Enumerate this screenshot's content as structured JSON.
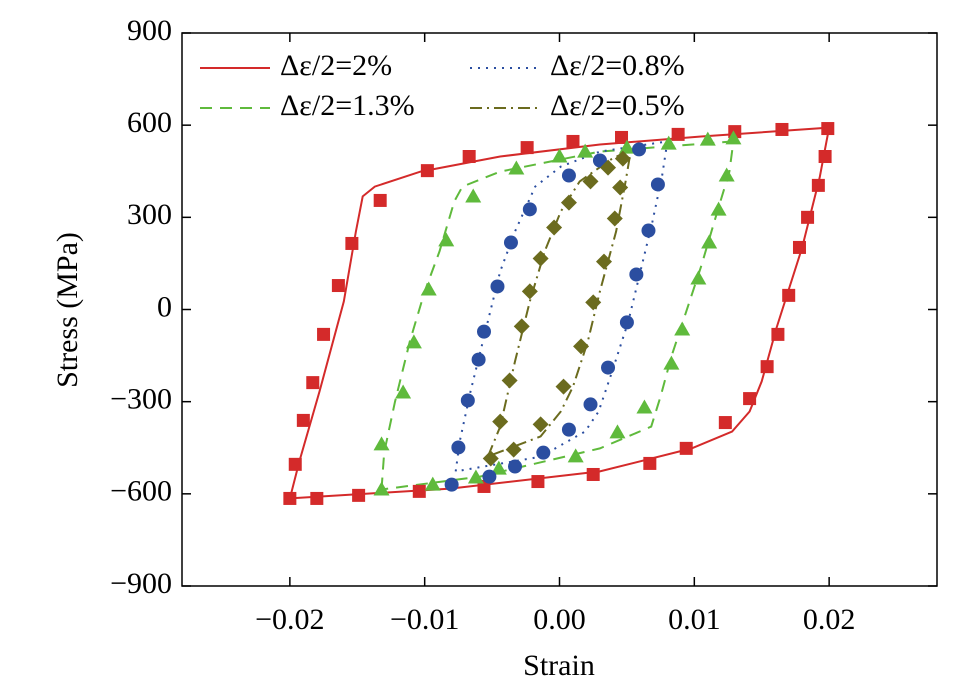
{
  "chart_data": {
    "type": "scatter-line",
    "x_label": "Strain",
    "y_label": "Stress (MPa)",
    "xlim": [
      -0.028,
      0.028
    ],
    "ylim": [
      -900,
      900
    ],
    "xticks": [
      {
        "value": -0.02,
        "label": "−0.02"
      },
      {
        "value": -0.01,
        "label": "−0.01"
      },
      {
        "value": 0,
        "label": "0.00"
      },
      0.01,
      0.02
    ],
    "yticks": [
      {
        "value": -900,
        "label": "−900"
      },
      {
        "value": -600,
        "label": "−600"
      },
      {
        "value": -300,
        "label": "−300"
      },
      0,
      300,
      600,
      900
    ],
    "legend": "upper left",
    "series": [
      {
        "name": "Δε/2=2%",
        "color": "#d42a2a",
        "dash": "solid",
        "marker": "square",
        "line_x": [
          -0.02,
          -0.0193,
          -0.0178,
          -0.016,
          -0.0151,
          -0.0146,
          -0.0137,
          -0.0103,
          -0.0044,
          0.003,
          0.0105,
          0.02,
          0.0193,
          0.018,
          0.0161,
          0.015,
          0.0141,
          0.0128,
          0.0098,
          0.003,
          -0.0081,
          -0.02
        ],
        "line_y": [
          -615,
          -495,
          -267,
          26,
          254,
          368,
          400,
          449,
          498,
          537,
          563,
          592,
          430,
          202,
          -59,
          -234,
          -332,
          -397,
          -452,
          -527,
          -583,
          -615
        ],
        "marker_x": [
          -0.02,
          -0.0196,
          -0.019,
          -0.0183,
          -0.0175,
          -0.0164,
          -0.0154,
          -0.0133,
          -0.0098,
          -0.0067,
          -0.0024,
          0.001,
          0.0046,
          0.0088,
          0.013,
          0.0165,
          0.0199,
          0.0197,
          0.0192,
          0.0184,
          0.0178,
          0.017,
          0.0162,
          0.0154,
          0.0141,
          0.0123,
          0.0094,
          0.0067,
          0.0025,
          -0.0016,
          -0.0056,
          -0.0104,
          -0.0149,
          -0.018
        ],
        "marker_y": [
          -615,
          -504,
          -361,
          -238,
          -81,
          78,
          215,
          355,
          452,
          498,
          527,
          547,
          560,
          570,
          579,
          586,
          589,
          498,
          404,
          300,
          202,
          46,
          -81,
          -186,
          -290,
          -368,
          -452,
          -501,
          -537,
          -560,
          -576,
          -592,
          -605,
          -615
        ]
      },
      {
        "name": "Δε/2=1.3%",
        "color": "#5fba3c",
        "dash": "dashed",
        "marker": "triangle",
        "line_x": [
          -0.0132,
          -0.013,
          -0.0122,
          -0.0111,
          -0.01,
          -0.0089,
          -0.0078,
          -0.0072,
          -0.0044,
          0.003,
          0.0129,
          0.0126,
          0.0116,
          0.0105,
          0.0094,
          0.0083,
          0.0075,
          0.0068,
          0.003,
          -0.0059,
          -0.0132
        ],
        "line_y": [
          -586,
          -465,
          -300,
          -104,
          59,
          189,
          352,
          400,
          449,
          514,
          547,
          449,
          303,
          140,
          -7,
          -153,
          -283,
          -381,
          -452,
          -544,
          -586
        ],
        "marker_x": [
          -0.0132,
          -0.0116,
          -0.0108,
          -0.0097,
          -0.0084,
          -0.0064,
          -0.0032,
          0,
          0.0019,
          0.005,
          0.0081,
          0.011,
          0.0129,
          0.0124,
          0.0118,
          0.0111,
          0.0103,
          0.0091,
          0.0083,
          0.0063,
          0.0043,
          0.0012,
          -0.0045,
          -0.0062,
          -0.0094,
          -0.0132
        ],
        "marker_y": [
          -439,
          -270,
          -107,
          65,
          225,
          368,
          459,
          498,
          514,
          527,
          540,
          553,
          557,
          436,
          325,
          218,
          101,
          -65,
          -176,
          -319,
          -400,
          -478,
          -518,
          -547,
          -570,
          -586
        ]
      },
      {
        "name": "Δε/2=0.8%",
        "color": "#2b4ea0",
        "dash": "dotted",
        "marker": "circle",
        "line_x": [
          -0.0077,
          -0.0074,
          -0.0066,
          -0.0055,
          -0.0044,
          -0.0033,
          -0.0018,
          0.0001,
          0.003,
          0.008,
          0.0076,
          0.0069,
          0.006,
          0.0051,
          0.0039,
          0.0029,
          0.0019,
          -0.0014,
          -0.0077
        ],
        "line_y": [
          -527,
          -430,
          -267,
          -72,
          124,
          254,
          400,
          465,
          514,
          547,
          433,
          287,
          124,
          -39,
          -202,
          -332,
          -397,
          -479,
          -527
        ],
        "marker_x": [
          -0.0075,
          -0.0068,
          -0.006,
          -0.0056,
          -0.0046,
          -0.0036,
          -0.0022,
          0.0007,
          0.003,
          0.0059,
          0.0073,
          0.0066,
          0.0057,
          0.005,
          0.0036,
          0.0023,
          0.0007,
          -0.0012,
          -0.0033,
          -0.0052,
          -0.008
        ],
        "marker_y": [
          -449,
          -296,
          -163,
          -72,
          75,
          218,
          326,
          436,
          485,
          521,
          407,
          257,
          114,
          -42,
          -189,
          -309,
          -391,
          -466,
          -511,
          -544,
          -570
        ]
      },
      {
        "name": "Δε/2=0.5%",
        "color": "#6b6b1e",
        "dash": "dashdot",
        "marker": "diamond",
        "line_x": [
          -0.0053,
          -0.0044,
          -0.0033,
          -0.0022,
          -0.0011,
          0.0001,
          0.0015,
          0.0038,
          0.0053,
          0.0049,
          0.0042,
          0.003,
          0.0021,
          0.001,
          0.0001,
          -0.0014,
          -0.0053
        ],
        "line_y": [
          -478,
          -381,
          -169,
          26,
          189,
          319,
          417,
          488,
          521,
          417,
          254,
          59,
          -104,
          -251,
          -332,
          -413,
          -478
        ],
        "marker_x": [
          -0.0051,
          -0.0044,
          -0.0037,
          -0.0028,
          -0.0022,
          -0.0014,
          -0.0004,
          0.0007,
          0.0023,
          0.0036,
          0.0047,
          0.0045,
          0.0041,
          0.0033,
          0.0025,
          0.0016,
          0.0003,
          -0.0014,
          -0.0034
        ],
        "marker_y": [
          -485,
          -365,
          -231,
          -55,
          59,
          166,
          267,
          348,
          417,
          462,
          491,
          397,
          296,
          156,
          23,
          -120,
          -251,
          -374,
          -456
        ]
      }
    ]
  }
}
